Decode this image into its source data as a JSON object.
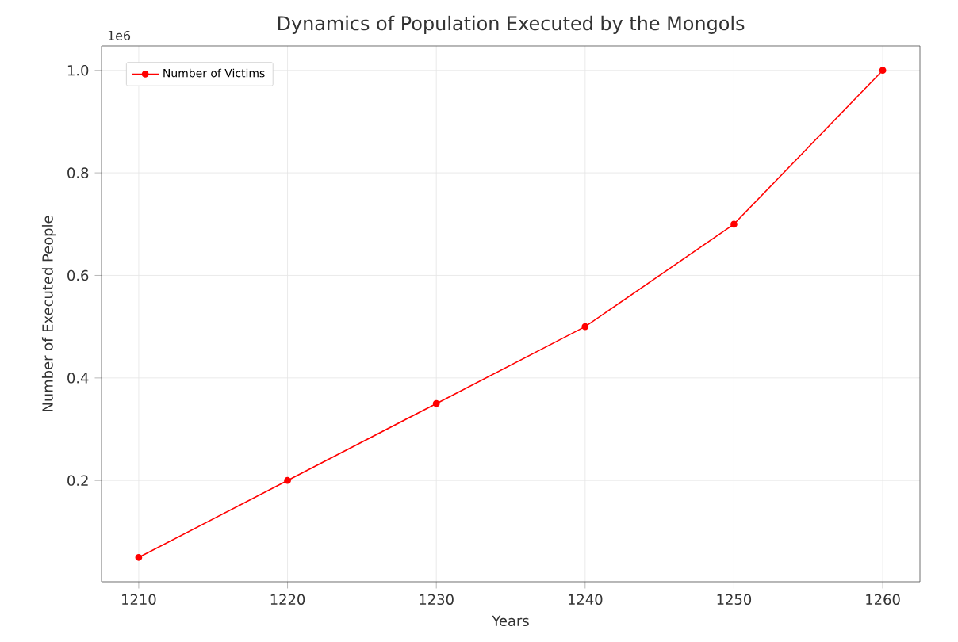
{
  "chart_data": {
    "type": "line",
    "title": "Dynamics of Population Executed by the Mongols",
    "xlabel": "Years",
    "ylabel": "Number of Executed People",
    "x": [
      1210,
      1220,
      1230,
      1240,
      1250,
      1260
    ],
    "series": [
      {
        "name": "Number of Victims",
        "color": "#ff0000",
        "values": [
          0.05,
          0.2,
          0.35,
          0.5,
          0.7,
          1.0
        ]
      }
    ],
    "xlim": [
      1207.5,
      1262.5
    ],
    "ylim": [
      0.0025,
      1.0475
    ],
    "xticks": [
      1210,
      1220,
      1230,
      1240,
      1250,
      1260
    ],
    "yticks": [
      0.2,
      0.4,
      0.6,
      0.8,
      {
        "value": 1.0,
        "label": "1.0"
      }
    ],
    "annotations": [
      "1e6"
    ],
    "grid": true,
    "legend": "top left",
    "marker": "circle",
    "line_style": "solid"
  }
}
